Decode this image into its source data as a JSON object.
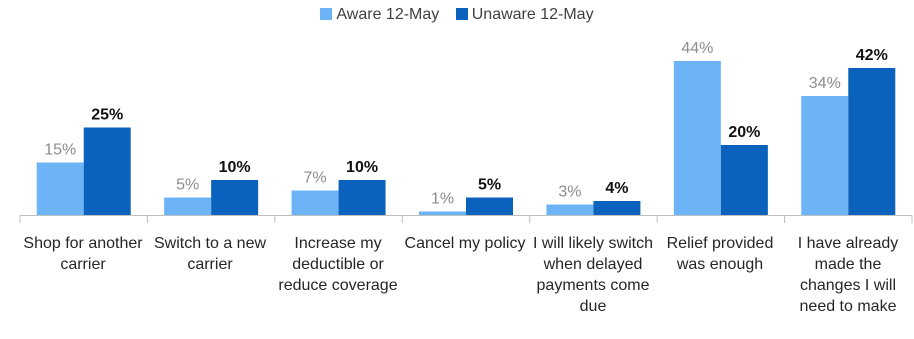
{
  "colors": {
    "aware": "#6cb4f6",
    "unaware": "#0b62bd",
    "axis": "#bfbfbf"
  },
  "chart_data": {
    "type": "bar",
    "categories": [
      "Shop for another carrier",
      "Switch to a new carrier",
      "Increase my deductible or reduce coverage",
      "Cancel my policy",
      "I will likely switch when delayed payments come due",
      "Relief provided was enough",
      "I have already made the changes I will need to make"
    ],
    "series": [
      {
        "name": "Aware 12-May",
        "values": [
          15,
          5,
          7,
          1,
          3,
          44,
          34
        ],
        "labels": [
          "15%",
          "5%",
          "7%",
          "1%",
          "3%",
          "44%",
          "34%"
        ]
      },
      {
        "name": "Unaware 12-May",
        "values": [
          25,
          10,
          10,
          5,
          4,
          20,
          42
        ],
        "labels": [
          "25%",
          "10%",
          "10%",
          "5%",
          "4%",
          "20%",
          "42%"
        ]
      }
    ],
    "ylim": [
      0,
      50
    ],
    "grid": false,
    "legend": "top-center",
    "title": "",
    "xlabel": "",
    "ylabel": ""
  }
}
